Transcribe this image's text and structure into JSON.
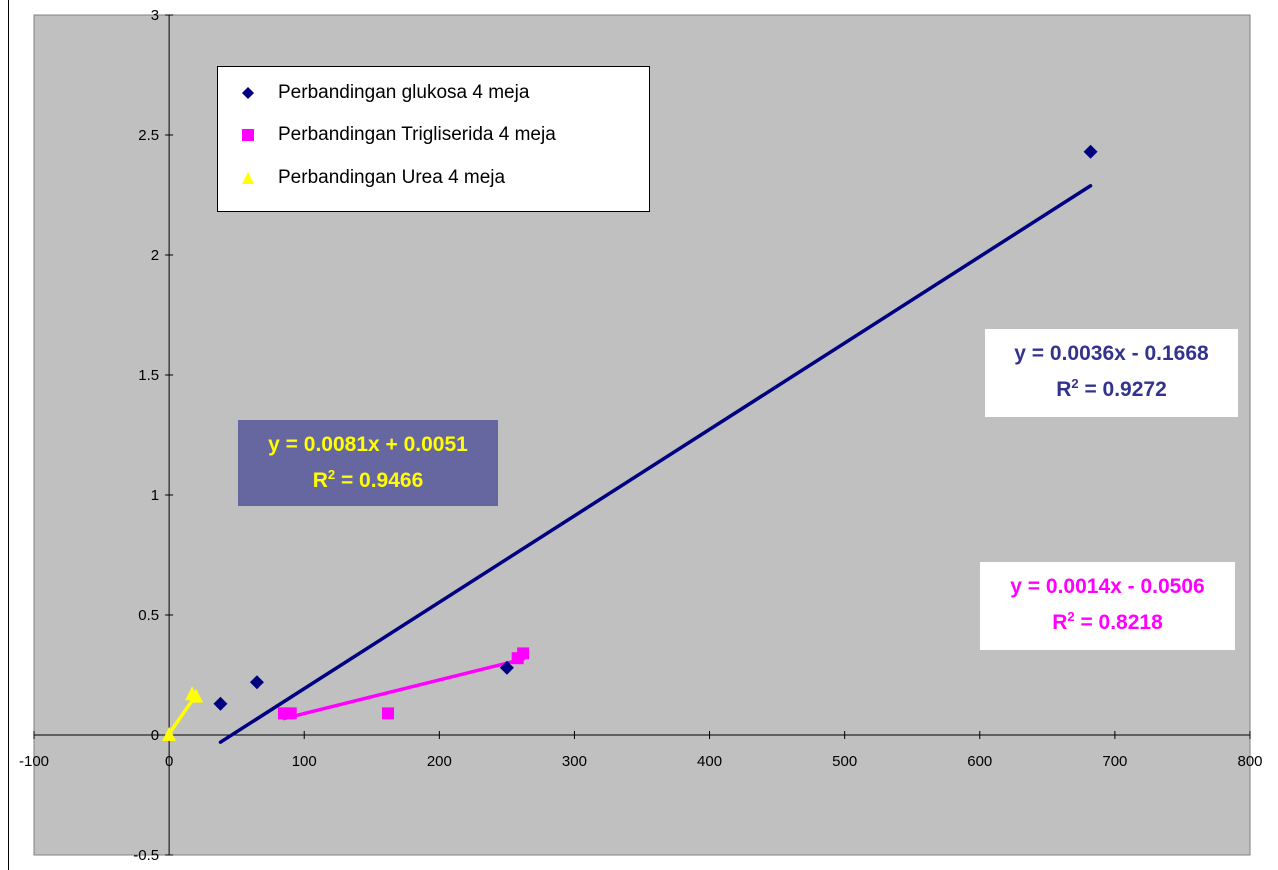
{
  "chart_data": {
    "type": "scatter",
    "xlim": [
      -100,
      800
    ],
    "ylim": [
      -0.5,
      3
    ],
    "x_ticks": [
      "-100",
      "0",
      "100",
      "200",
      "300",
      "400",
      "500",
      "600",
      "700",
      "800"
    ],
    "y_ticks": [
      "-0.5",
      "0",
      "0.5",
      "1",
      "1.5",
      "2",
      "2.5",
      "3"
    ],
    "grid": false,
    "plot_background": "#c0c0c0",
    "legend_position": "top-left",
    "series": [
      {
        "name": "Perbandingan glukosa 4 meja",
        "color": "#000080",
        "marker": "diamond",
        "points": [
          [
            38,
            0.13
          ],
          [
            65,
            0.22
          ],
          [
            250,
            0.28
          ],
          [
            682,
            2.43
          ]
        ],
        "trendline": {
          "slope": 0.0036,
          "intercept": -0.1668,
          "x_range": [
            38,
            682
          ]
        },
        "equation": "y = 0.0036x - 0.1668",
        "r2_label": "R",
        "r2_value": " = 0.9272"
      },
      {
        "name": "Perbandingan Trigliserida 4 meja",
        "color": "#ff00ff",
        "marker": "square",
        "points": [
          [
            85,
            0.09
          ],
          [
            90,
            0.09
          ],
          [
            162,
            0.09
          ],
          [
            258,
            0.32
          ],
          [
            262,
            0.34
          ]
        ],
        "trendline": {
          "slope": 0.0014,
          "intercept": -0.0506,
          "x_range": [
            85,
            262
          ]
        },
        "equation": "y = 0.0014x - 0.0506",
        "r2_label": "R",
        "r2_value": " = 0.8218"
      },
      {
        "name": "Perbandingan Urea 4 meja",
        "color": "#ffff00",
        "marker": "triangle",
        "points": [
          [
            0,
            0.0
          ],
          [
            17,
            0.17
          ],
          [
            20,
            0.16
          ]
        ],
        "trendline": {
          "slope": 0.0081,
          "intercept": 0.0051,
          "x_range": [
            0,
            20
          ]
        },
        "equation": "y = 0.0081x + 0.0051",
        "r2_label": "R",
        "r2_value": " = 0.9466"
      }
    ]
  }
}
